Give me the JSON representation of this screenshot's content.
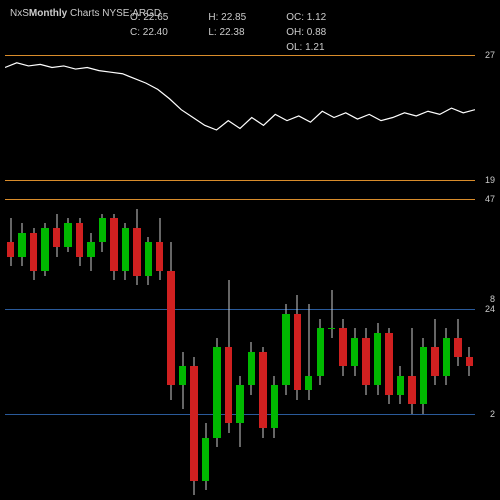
{
  "header": {
    "title_left": "NxS",
    "title_mid": "Monthly",
    "title_right": "Charts NYSE:ARGD"
  },
  "ohlc": {
    "o_label": "O:",
    "o_val": "22.65",
    "c_label": "C:",
    "c_val": "22.40",
    "h_label": "H:",
    "h_val": "22.85",
    "l_label": "L:",
    "l_val": "22.38",
    "oc_label": "OC:",
    "oc_val": "1.12",
    "oh_label": "OH:",
    "oh_val": "0.88",
    "ol_label": "OL:",
    "ol_val": "1.21"
  },
  "colors": {
    "bg": "#000000",
    "text": "#cccccc",
    "orange_line": "#d98c2b",
    "blue_line": "#2a5a9a",
    "green_candle": "#00b800",
    "red_candle": "#d02020",
    "wick": "#cccccc",
    "line_series": "#ffffff"
  },
  "upper_panel": {
    "ymin": 19,
    "ymax": 27,
    "lines": [
      {
        "y": 27,
        "color": "#d98c2b",
        "label": "27"
      },
      {
        "y": 19,
        "color": "#d98c2b",
        "label": "19"
      }
    ],
    "series": {
      "type": "line",
      "color": "#ffffff",
      "values": [
        26.2,
        26.5,
        26.3,
        26.4,
        26.2,
        26.3,
        26.1,
        26.2,
        26.0,
        25.9,
        25.8,
        25.5,
        25.2,
        24.8,
        24.2,
        23.5,
        23.0,
        22.5,
        22.2,
        22.8,
        22.3,
        23.0,
        22.5,
        23.2,
        22.8,
        23.1,
        22.7,
        23.4,
        23.0,
        23.3,
        22.9,
        23.2,
        22.8,
        23.0,
        23.3,
        23.1,
        23.4,
        23.2,
        23.6,
        23.3,
        23.5
      ]
    }
  },
  "lower_panel": {
    "ymin": -15,
    "ymax": 50,
    "lines": [
      {
        "y": 47,
        "color": "#d98c2b",
        "label": "47"
      },
      {
        "y": 24,
        "color": "#2a5a9a",
        "label": "24",
        "secondary": "8"
      },
      {
        "y": 2,
        "color": "#2a5a9a",
        "label": "2"
      }
    ],
    "candles": [
      {
        "o": 38,
        "h": 43,
        "l": 33,
        "c": 35
      },
      {
        "o": 35,
        "h": 42,
        "l": 33,
        "c": 40
      },
      {
        "o": 40,
        "h": 41,
        "l": 30,
        "c": 32
      },
      {
        "o": 32,
        "h": 42,
        "l": 31,
        "c": 41
      },
      {
        "o": 41,
        "h": 44,
        "l": 35,
        "c": 37
      },
      {
        "o": 37,
        "h": 43,
        "l": 36,
        "c": 42
      },
      {
        "o": 42,
        "h": 43,
        "l": 33,
        "c": 35
      },
      {
        "o": 35,
        "h": 40,
        "l": 32,
        "c": 38
      },
      {
        "o": 38,
        "h": 44,
        "l": 36,
        "c": 43
      },
      {
        "o": 43,
        "h": 44,
        "l": 30,
        "c": 32
      },
      {
        "o": 32,
        "h": 42,
        "l": 30,
        "c": 41
      },
      {
        "o": 41,
        "h": 45,
        "l": 29,
        "c": 31
      },
      {
        "o": 31,
        "h": 39,
        "l": 29,
        "c": 38
      },
      {
        "o": 38,
        "h": 43,
        "l": 30,
        "c": 32
      },
      {
        "o": 32,
        "h": 38,
        "l": 5,
        "c": 8
      },
      {
        "o": 8,
        "h": 15,
        "l": 3,
        "c": 12
      },
      {
        "o": 12,
        "h": 14,
        "l": -15,
        "c": -12
      },
      {
        "o": -12,
        "h": 0,
        "l": -14,
        "c": -3
      },
      {
        "o": -3,
        "h": 18,
        "l": -5,
        "c": 16
      },
      {
        "o": 16,
        "h": 30,
        "l": -2,
        "c": 0
      },
      {
        "o": 0,
        "h": 10,
        "l": -5,
        "c": 8
      },
      {
        "o": 8,
        "h": 17,
        "l": 6,
        "c": 15
      },
      {
        "o": 15,
        "h": 16,
        "l": -3,
        "c": -1
      },
      {
        "o": -1,
        "h": 10,
        "l": -3,
        "c": 8
      },
      {
        "o": 8,
        "h": 25,
        "l": 6,
        "c": 23
      },
      {
        "o": 23,
        "h": 27,
        "l": 5,
        "c": 7
      },
      {
        "o": 7,
        "h": 25,
        "l": 5,
        "c": 10
      },
      {
        "o": 10,
        "h": 22,
        "l": 8,
        "c": 20
      },
      {
        "o": 20,
        "h": 28,
        "l": 18,
        "c": 20
      },
      {
        "o": 20,
        "h": 22,
        "l": 10,
        "c": 12
      },
      {
        "o": 12,
        "h": 20,
        "l": 10,
        "c": 18
      },
      {
        "o": 18,
        "h": 20,
        "l": 6,
        "c": 8
      },
      {
        "o": 8,
        "h": 21,
        "l": 6,
        "c": 19
      },
      {
        "o": 19,
        "h": 20,
        "l": 4,
        "c": 6
      },
      {
        "o": 6,
        "h": 12,
        "l": 4,
        "c": 10
      },
      {
        "o": 10,
        "h": 20,
        "l": 2,
        "c": 4
      },
      {
        "o": 4,
        "h": 18,
        "l": 2,
        "c": 16
      },
      {
        "o": 16,
        "h": 22,
        "l": 8,
        "c": 10
      },
      {
        "o": 10,
        "h": 20,
        "l": 8,
        "c": 18
      },
      {
        "o": 18,
        "h": 22,
        "l": 12,
        "c": 14
      },
      {
        "o": 14,
        "h": 16,
        "l": 10,
        "c": 12
      }
    ]
  }
}
